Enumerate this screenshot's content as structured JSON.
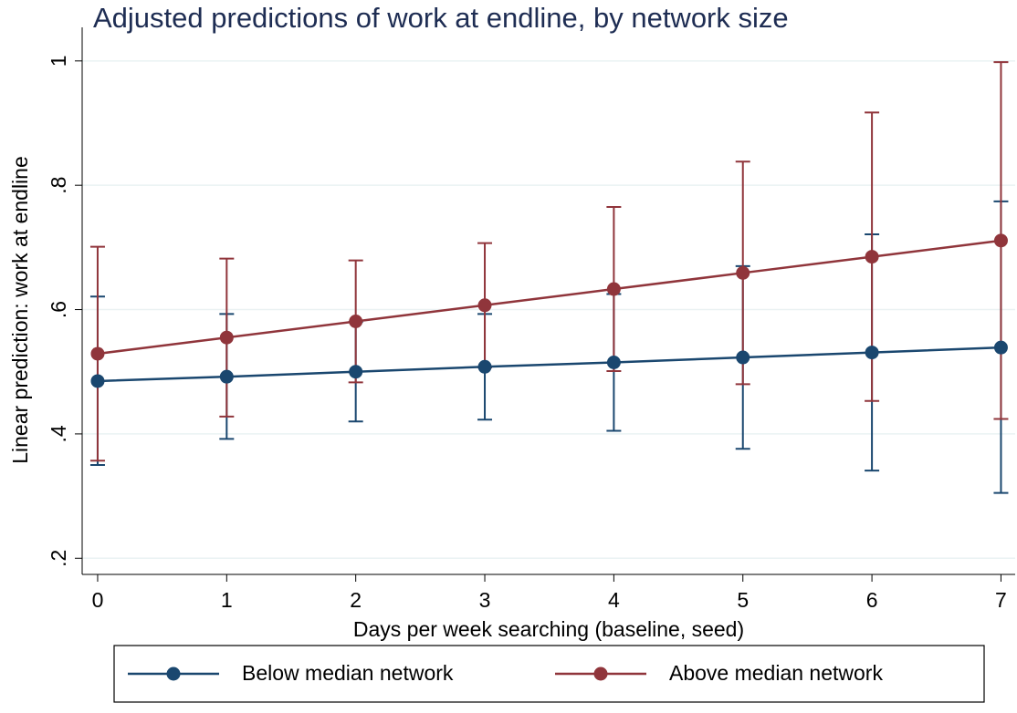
{
  "chart_data": {
    "type": "errorbar-line",
    "title": "Adjusted predictions of work at endline, by network size",
    "x_label": "Days per week searching (baseline, seed)",
    "y_label": "Linear prediction: work at endline",
    "x": [
      0,
      1,
      2,
      3,
      4,
      5,
      6,
      7
    ],
    "xlim": [
      -0.12,
      7.11
    ],
    "xticks": [
      0,
      1,
      2,
      3,
      4,
      5,
      6,
      7
    ],
    "ylim": [
      0.174,
      1.054
    ],
    "yticks": [
      {
        "value": 0.2,
        "label": ".2"
      },
      {
        "value": 0.4,
        "label": ".4"
      },
      {
        "value": 0.6,
        "label": ".6"
      },
      {
        "value": 0.8,
        "label": ".8"
      },
      1
    ],
    "grid": true,
    "legend": "bottom",
    "series": [
      {
        "name": "Below median network",
        "color": "#1a476f",
        "values": [
          0.485,
          0.492,
          0.5,
          0.508,
          0.515,
          0.523,
          0.531,
          0.539
        ],
        "lower": [
          0.35,
          0.392,
          0.42,
          0.423,
          0.405,
          0.376,
          0.341,
          0.305
        ],
        "upper": [
          0.621,
          0.593,
          0.58,
          0.593,
          0.625,
          0.67,
          0.721,
          0.774
        ]
      },
      {
        "name": "Above median network",
        "color": "#90353b",
        "values": [
          0.529,
          0.555,
          0.581,
          0.607,
          0.633,
          0.659,
          0.685,
          0.711
        ],
        "lower": [
          0.357,
          0.428,
          0.483,
          0.507,
          0.501,
          0.48,
          0.453,
          0.424
        ],
        "upper": [
          0.701,
          0.682,
          0.679,
          0.707,
          0.765,
          0.838,
          0.917,
          0.998
        ]
      }
    ]
  }
}
